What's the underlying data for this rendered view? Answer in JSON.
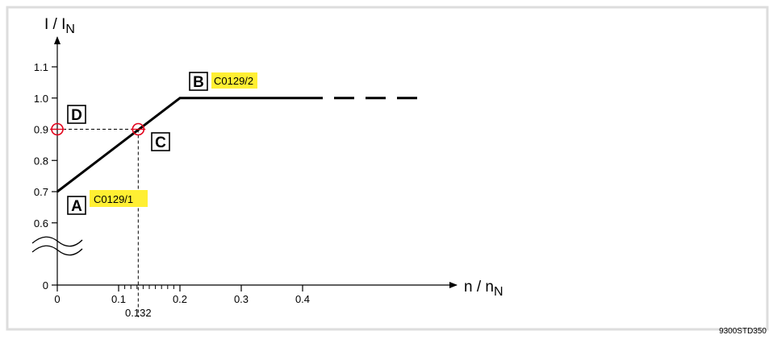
{
  "chart_data": {
    "type": "line",
    "ylabel": "I / I",
    "ylabel_sub": "N",
    "xlabel": "n / n",
    "xlabel_sub": "N",
    "y_ticks": [
      "1.1",
      "1.0",
      "0.9",
      "0.8",
      "0.7",
      "0.6"
    ],
    "y_zero": "0",
    "y_axis_break": true,
    "x_ticks": [
      "0",
      "0.1",
      "0.2",
      "0.3",
      "0.4"
    ],
    "x_minor_ticks": [
      0.11,
      0.12,
      0.13,
      0.14,
      0.15,
      0.16,
      0.17,
      0.18,
      0.19
    ],
    "x_extra_label": "0.132",
    "ylim": [
      0,
      1.1
    ],
    "xlim": [
      0,
      0.4
    ],
    "series": [
      {
        "style": "solid",
        "x": [
          0,
          0.2,
          0.4
        ],
        "y": [
          0.7,
          1.0,
          1.0
        ]
      },
      {
        "style": "dashed",
        "x": [
          0.4,
          0.6
        ],
        "y": [
          1.0,
          1.0
        ]
      }
    ],
    "reference_lines": [
      {
        "from": [
          0,
          0.9
        ],
        "to": [
          0.132,
          0.9
        ],
        "style": "dashed"
      },
      {
        "from": [
          0.132,
          0.9
        ],
        "to": [
          0.132,
          0
        ],
        "style": "dashed"
      }
    ],
    "markers": [
      {
        "x": 0,
        "y": 0.9,
        "shape": "circle",
        "color": "#e2001a"
      },
      {
        "x": 0.132,
        "y": 0.9,
        "shape": "circle",
        "color": "#e2001a"
      }
    ],
    "points": [
      {
        "label": "A",
        "tag": "C0129/1"
      },
      {
        "label": "B",
        "tag": "C0129/2"
      },
      {
        "label": "C",
        "tag": ""
      },
      {
        "label": "D",
        "tag": ""
      }
    ]
  },
  "colors": {
    "line": "#000000",
    "marker": "#e2001a",
    "highlight": "#ffef33",
    "frame": "#dddddd"
  },
  "figure_id": "9300STD350"
}
